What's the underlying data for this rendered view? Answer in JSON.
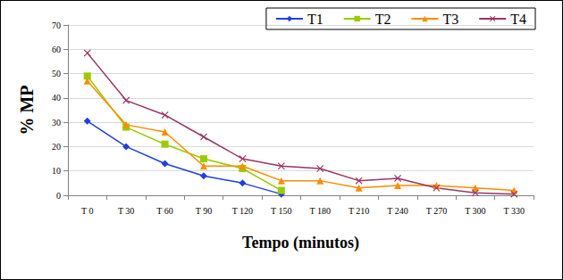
{
  "chart_data": {
    "type": "line",
    "x_label": "Tempo (minutos)",
    "y_label": "% MP",
    "categories": [
      "T 0",
      "T 30",
      "T 60",
      "T 90",
      "T 120",
      "T 150",
      "T 180",
      "T 210",
      "T 240",
      "T 270",
      "T 300",
      "T 330"
    ],
    "series": [
      {
        "name": "T1",
        "color": "#1f3fe0",
        "marker": "diamond",
        "values": [
          30.5,
          20,
          13,
          8,
          5,
          0.5,
          null,
          null,
          null,
          null,
          null,
          null
        ]
      },
      {
        "name": "T2",
        "color": "#99cc00",
        "marker": "square",
        "values": [
          49,
          28,
          21,
          15,
          11,
          2,
          null,
          null,
          null,
          null,
          null,
          null
        ]
      },
      {
        "name": "T3",
        "color": "#ff8c00",
        "marker": "triangle",
        "values": [
          47,
          29,
          26,
          12,
          12,
          6,
          6,
          3,
          4,
          4,
          3,
          2
        ]
      },
      {
        "name": "T4",
        "color": "#993366",
        "marker": "x",
        "values": [
          58.5,
          39,
          33,
          24,
          15,
          12,
          11,
          6,
          7,
          3,
          1,
          0.5
        ]
      }
    ],
    "ylim": [
      0,
      70
    ],
    "yticks": [
      0,
      10,
      20,
      30,
      40,
      50,
      60,
      70
    ],
    "grid": true,
    "legend": "top-right"
  }
}
